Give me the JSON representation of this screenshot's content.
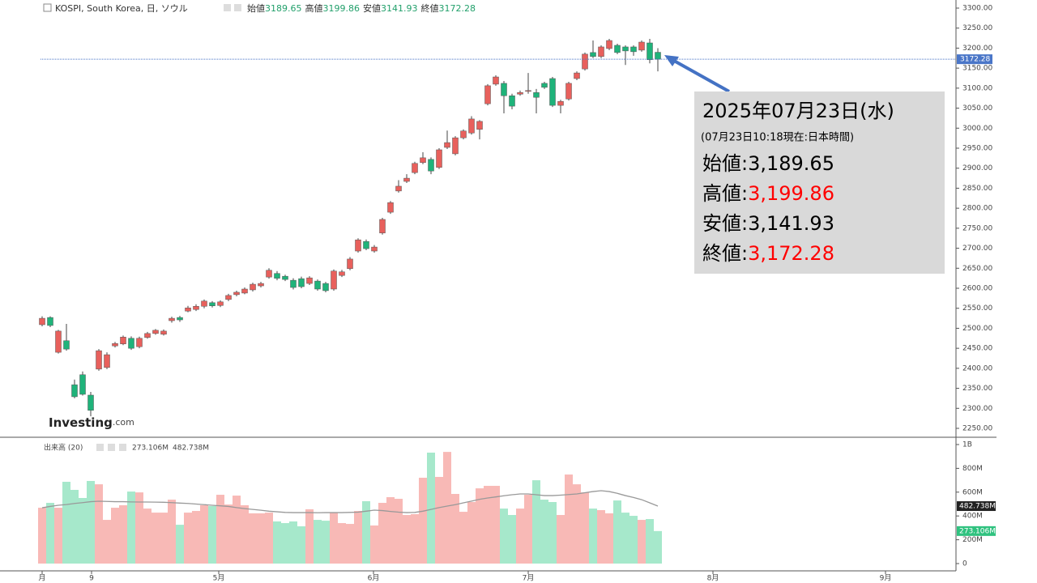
{
  "header": {
    "title": "KOSPI, South Korea, 日, ソウル",
    "open_label": "始値",
    "high_label": "高値",
    "low_label": "安値",
    "close_label": "終値"
  },
  "logo": {
    "main": "Investing",
    "suffix": ".com"
  },
  "annotation": {
    "date": "2025年07月23日(水)",
    "note": "(07月23日10:18現在:日本時間)",
    "separator": ":",
    "rows": [
      {
        "label": "始値",
        "value": "3,189.65",
        "color": "#000000"
      },
      {
        "label": "高値",
        "value": "3,199.86",
        "color": "#ff0000"
      },
      {
        "label": "安値",
        "value": "3,141.93",
        "color": "#000000"
      },
      {
        "label": "終値",
        "value": "3,172.28",
        "color": "#ff0000"
      }
    ]
  },
  "volume_panel": {
    "title": "出来高 (20)",
    "last_label": "273.106M",
    "ma_label": "482.738M"
  },
  "chart_data": {
    "type": "candlestick",
    "up_color": "#e8605c",
    "down_color": "#1fb37a",
    "volume_up_color": "#f8b9b6",
    "volume_down_color": "#a6e8cb",
    "ma_color": "#999999",
    "x_labels": [
      "月",
      "9",
      "5月",
      "6月",
      "7月",
      "8月",
      "9月"
    ],
    "open": [
      2509,
      2527,
      2440,
      2469,
      2359,
      2384,
      2333,
      2398,
      2402,
      2456,
      2461,
      2475,
      2454,
      2477,
      2487,
      2485,
      2519,
      2527,
      2543,
      2547,
      2555,
      2564,
      2557,
      2572,
      2584,
      2588,
      2596,
      2606,
      2628,
      2637,
      2630,
      2620,
      2624,
      2612,
      2618,
      2612,
      2598,
      2632,
      2649,
      2693,
      2717,
      2693,
      2738,
      2790,
      2843,
      2867,
      2889,
      2914,
      2922,
      2902,
      2952,
      2936,
      2976,
      2988,
      2997,
      3061,
      3110,
      3112,
      3081,
      3085,
      3092,
      3089,
      3112,
      3124,
      3057,
      3073,
      3124,
      3148,
      3189,
      3179,
      3199,
      3207,
      3203,
      3203,
      3195,
      3213,
      3189.65
    ],
    "high": [
      2530,
      2530,
      2496,
      2511,
      2372,
      2392,
      2341,
      2448,
      2440,
      2466,
      2482,
      2480,
      2479,
      2491,
      2498,
      2497,
      2529,
      2531,
      2556,
      2560,
      2572,
      2568,
      2570,
      2586,
      2594,
      2602,
      2614,
      2616,
      2650,
      2643,
      2634,
      2625,
      2629,
      2630,
      2622,
      2616,
      2647,
      2646,
      2678,
      2725,
      2722,
      2708,
      2776,
      2818,
      2870,
      2885,
      2916,
      2940,
      2927,
      2950,
      2994,
      2980,
      2997,
      3030,
      3020,
      3110,
      3132,
      3118,
      3086,
      3094,
      3138,
      3098,
      3116,
      3128,
      3071,
      3116,
      3142,
      3189,
      3219,
      3207,
      3223,
      3211,
      3207,
      3207,
      3219,
      3223,
      3199.86
    ],
    "low": [
      2505,
      2503,
      2437,
      2444,
      2325,
      2332,
      2280,
      2394,
      2398,
      2452,
      2458,
      2446,
      2450,
      2474,
      2484,
      2482,
      2514,
      2516,
      2540,
      2543,
      2550,
      2552,
      2553,
      2568,
      2580,
      2585,
      2592,
      2602,
      2624,
      2620,
      2618,
      2597,
      2600,
      2608,
      2594,
      2590,
      2594,
      2628,
      2645,
      2689,
      2695,
      2689,
      2734,
      2786,
      2839,
      2863,
      2885,
      2910,
      2885,
      2898,
      2948,
      2932,
      2972,
      2984,
      2972,
      3057,
      3106,
      3037,
      3047,
      3081,
      3086,
      3037,
      3098,
      3053,
      3037,
      3069,
      3120,
      3144,
      3175,
      3175,
      3195,
      3185,
      3158,
      3181,
      3191,
      3162,
      3141.93
    ],
    "close": [
      2525,
      2507,
      2493,
      2448,
      2329,
      2335,
      2295,
      2444,
      2434,
      2462,
      2478,
      2450,
      2475,
      2487,
      2495,
      2493,
      2525,
      2521,
      2551,
      2555,
      2568,
      2556,
      2566,
      2582,
      2590,
      2598,
      2610,
      2612,
      2645,
      2625,
      2622,
      2602,
      2604,
      2626,
      2598,
      2594,
      2643,
      2641,
      2673,
      2721,
      2699,
      2703,
      2772,
      2814,
      2855,
      2875,
      2912,
      2926,
      2893,
      2946,
      2964,
      2976,
      2993,
      3023,
      3017,
      3106,
      3128,
      3081,
      3055,
      3089,
      3094,
      3077,
      3102,
      3057,
      3067,
      3112,
      3138,
      3185,
      3179,
      3203,
      3219,
      3189,
      3193,
      3191,
      3215,
      3171,
      3172.28
    ],
    "volume": [
      469,
      510,
      469,
      687,
      619,
      551,
      694,
      666,
      367,
      469,
      490,
      605,
      598,
      462,
      428,
      428,
      537,
      326,
      428,
      442,
      490,
      483,
      578,
      496,
      571,
      490,
      422,
      422,
      428,
      354,
      340,
      354,
      313,
      456,
      367,
      360,
      428,
      340,
      333,
      442,
      524,
      320,
      510,
      558,
      544,
      408,
      415,
      721,
      932,
      728,
      938,
      585,
      435,
      517,
      632,
      653,
      653,
      462,
      408,
      462,
      578,
      700,
      537,
      517,
      408,
      748,
      666,
      598,
      462,
      449,
      422,
      530,
      428,
      401,
      367,
      374,
      273.106
    ],
    "volume_ma": [
      469,
      480,
      490,
      496,
      505,
      512,
      520,
      524,
      522,
      520,
      520,
      518,
      517,
      517,
      516,
      515,
      512,
      508,
      505,
      500,
      495,
      490,
      485,
      480,
      470,
      462,
      455,
      448,
      440,
      435,
      430,
      428,
      428,
      428,
      427,
      428,
      428,
      428,
      430,
      432,
      440,
      449,
      445,
      438,
      432,
      428,
      430,
      440,
      455,
      470,
      483,
      495,
      510,
      525,
      540,
      551,
      560,
      570,
      578,
      585,
      585,
      578,
      571,
      571,
      575,
      580,
      585,
      595,
      605,
      612,
      605,
      590,
      571,
      555,
      537,
      510,
      482.738
    ],
    "ylim": [
      2250,
      3300
    ],
    "yticks": [
      {
        "value": 2250,
        "label": "2250.00"
      },
      {
        "value": 2300,
        "label": "2300.00"
      },
      {
        "value": 2350,
        "label": "2350.00"
      },
      {
        "value": 2400,
        "label": "2400.00"
      },
      {
        "value": 2450,
        "label": "2450.00"
      },
      {
        "value": 2500,
        "label": "2500.00"
      },
      {
        "value": 2550,
        "label": "2550.00"
      },
      {
        "value": 2600,
        "label": "2600.00"
      },
      {
        "value": 2650,
        "label": "2650.00"
      },
      {
        "value": 2700,
        "label": "2700.00"
      },
      {
        "value": 2750,
        "label": "2750.00"
      },
      {
        "value": 2800,
        "label": "2800.00"
      },
      {
        "value": 2850,
        "label": "2850.00"
      },
      {
        "value": 2900,
        "label": "2900.00"
      },
      {
        "value": 2950,
        "label": "2950.00"
      },
      {
        "value": 3000,
        "label": "3000.00"
      },
      {
        "value": 3050,
        "label": "3050.00"
      },
      {
        "value": 3100,
        "label": "3100.00"
      },
      {
        "value": 3150,
        "label": "3150.00"
      },
      {
        "value": 3200,
        "label": "3200.00"
      },
      {
        "value": 3250,
        "label": "3250.00"
      },
      {
        "value": 3300,
        "label": "3300.00"
      }
    ],
    "y2lim": [
      0,
      1000
    ],
    "y2ticks": [
      0,
      {
        "value": 200,
        "label": "200M"
      },
      {
        "value": 400,
        "label": "400M"
      },
      {
        "value": 600,
        "label": "600M"
      },
      {
        "value": 800,
        "label": "800M"
      },
      {
        "value": 1000,
        "label": "1B"
      }
    ]
  }
}
